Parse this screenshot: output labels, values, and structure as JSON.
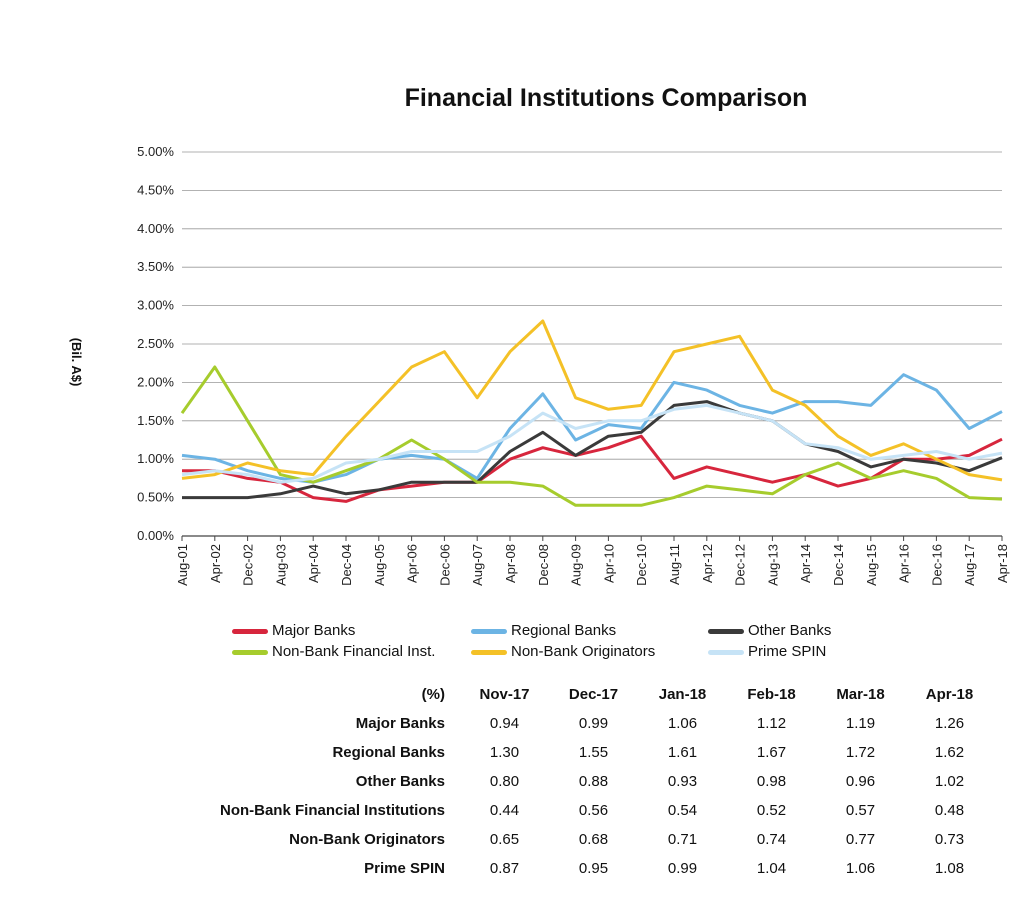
{
  "chart_data": {
    "type": "line",
    "title": "Financial Institutions Comparison",
    "ylabel": "(Bil. A$)",
    "xlabel": "",
    "ylim": [
      0,
      5
    ],
    "yticks": [
      "0.00%",
      "0.50%",
      "1.00%",
      "1.50%",
      "2.00%",
      "2.50%",
      "3.00%",
      "3.50%",
      "4.00%",
      "4.50%",
      "5.00%"
    ],
    "xtick_labels": [
      "Aug-01",
      "Apr-02",
      "Dec-02",
      "Aug-03",
      "Apr-04",
      "Dec-04",
      "Aug-05",
      "Apr-06",
      "Dec-06",
      "Aug-07",
      "Apr-08",
      "Dec-08",
      "Aug-09",
      "Apr-10",
      "Dec-10",
      "Aug-11",
      "Apr-12",
      "Dec-12",
      "Aug-13",
      "Apr-14",
      "Dec-14",
      "Aug-15",
      "Apr-16",
      "Dec-16",
      "Aug-17",
      "Apr-18"
    ],
    "grid": true,
    "legend_position": "bottom",
    "x": [
      "Aug-01",
      "Apr-02",
      "Dec-02",
      "Aug-03",
      "Apr-04",
      "Dec-04",
      "Aug-05",
      "Apr-06",
      "Dec-06",
      "Aug-07",
      "Apr-08",
      "Dec-08",
      "Aug-09",
      "Apr-10",
      "Dec-10",
      "Aug-11",
      "Apr-12",
      "Dec-12",
      "Aug-13",
      "Apr-14",
      "Dec-14",
      "Aug-15",
      "Apr-16",
      "Dec-16",
      "Aug-17",
      "Apr-18"
    ],
    "series": [
      {
        "name": "Major Banks",
        "color": "#d7263d",
        "values": [
          0.85,
          0.85,
          0.75,
          0.7,
          0.5,
          0.45,
          0.6,
          0.65,
          0.7,
          0.7,
          1.0,
          1.15,
          1.05,
          1.15,
          1.3,
          0.75,
          0.9,
          0.8,
          0.7,
          0.8,
          0.65,
          0.75,
          1.0,
          1.0,
          1.05,
          1.26
        ]
      },
      {
        "name": "Regional Banks",
        "color": "#6cb4e4",
        "values": [
          1.05,
          1.0,
          0.85,
          0.75,
          0.7,
          0.8,
          1.0,
          1.05,
          1.0,
          0.75,
          1.4,
          1.85,
          1.25,
          1.45,
          1.4,
          2.0,
          1.9,
          1.7,
          1.6,
          1.75,
          1.75,
          1.7,
          2.1,
          1.9,
          1.4,
          1.62
        ]
      },
      {
        "name": "Other Banks",
        "color": "#3a3a3a",
        "values": [
          0.5,
          0.5,
          0.5,
          0.55,
          0.65,
          0.55,
          0.6,
          0.7,
          0.7,
          0.7,
          1.1,
          1.35,
          1.05,
          1.3,
          1.35,
          1.7,
          1.75,
          1.6,
          1.5,
          1.2,
          1.1,
          0.9,
          1.0,
          0.95,
          0.85,
          1.02
        ]
      },
      {
        "name": "Non-Bank Financial Inst.",
        "color": "#a6cc2d",
        "values": [
          1.6,
          2.2,
          1.5,
          0.8,
          0.7,
          0.85,
          1.0,
          1.25,
          1.0,
          0.7,
          0.7,
          0.65,
          0.4,
          0.4,
          0.4,
          0.5,
          0.65,
          0.6,
          0.55,
          0.8,
          0.95,
          0.75,
          0.85,
          0.75,
          0.5,
          0.48
        ]
      },
      {
        "name": "Non-Bank Originators",
        "color": "#f4c127",
        "values": [
          0.75,
          0.8,
          0.95,
          0.85,
          0.8,
          1.3,
          1.75,
          2.2,
          2.4,
          1.8,
          2.4,
          2.8,
          1.8,
          1.65,
          1.7,
          2.4,
          2.5,
          2.6,
          1.9,
          1.7,
          1.3,
          1.05,
          1.2,
          1.0,
          0.8,
          0.73
        ]
      },
      {
        "name": "Prime SPIN",
        "color": "#c6e3f6",
        "values": [
          0.8,
          0.85,
          0.8,
          0.7,
          0.75,
          0.95,
          1.0,
          1.1,
          1.1,
          1.1,
          1.3,
          1.6,
          1.4,
          1.5,
          1.5,
          1.65,
          1.7,
          1.6,
          1.5,
          1.2,
          1.15,
          1.0,
          1.05,
          1.1,
          1.0,
          1.08
        ]
      }
    ]
  },
  "legend": [
    {
      "label": "Major Banks",
      "color": "#d7263d"
    },
    {
      "label": "Regional Banks",
      "color": "#6cb4e4"
    },
    {
      "label": "Other Banks",
      "color": "#3a3a3a"
    },
    {
      "label": "Non-Bank Financial Inst.",
      "color": "#a6cc2d"
    },
    {
      "label": "Non-Bank Originators",
      "color": "#f4c127"
    },
    {
      "label": "Prime SPIN",
      "color": "#c6e3f6"
    }
  ],
  "table": {
    "corner": "(%)",
    "columns": [
      "Nov-17",
      "Dec-17",
      "Jan-18",
      "Feb-18",
      "Mar-18",
      "Apr-18"
    ],
    "rows": [
      {
        "label": "Major Banks",
        "values": [
          "0.94",
          "0.99",
          "1.06",
          "1.12",
          "1.19",
          "1.26"
        ]
      },
      {
        "label": "Regional Banks",
        "values": [
          "1.30",
          "1.55",
          "1.61",
          "1.67",
          "1.72",
          "1.62"
        ]
      },
      {
        "label": "Other Banks",
        "values": [
          "0.80",
          "0.88",
          "0.93",
          "0.98",
          "0.96",
          "1.02"
        ]
      },
      {
        "label": "Non-Bank Financial Institutions",
        "values": [
          "0.44",
          "0.56",
          "0.54",
          "0.52",
          "0.57",
          "0.48"
        ]
      },
      {
        "label": "Non-Bank Originators",
        "values": [
          "0.65",
          "0.68",
          "0.71",
          "0.74",
          "0.77",
          "0.73"
        ]
      },
      {
        "label": "Prime SPIN",
        "values": [
          "0.87",
          "0.95",
          "0.99",
          "1.04",
          "1.06",
          "1.08"
        ]
      }
    ]
  }
}
